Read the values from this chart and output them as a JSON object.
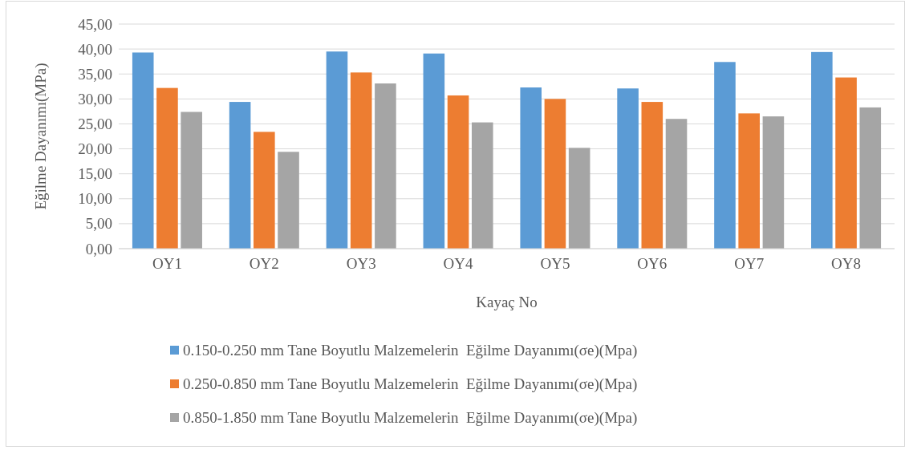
{
  "chart_data": {
    "type": "bar",
    "xlabel": "Kayaç No",
    "ylabel": "Eğilme Dayanımı(MPa)",
    "categories": [
      "OY1",
      "OY2",
      "OY3",
      "OY4",
      "OY5",
      "OY6",
      "OY7",
      "OY8"
    ],
    "series": [
      {
        "name": "0.150-0.250 mm Tane Boyutlu Malzemelerin  Eğilme Dayanımı(σe)(Mpa)",
        "color": "#5b9bd5",
        "values": [
          39.3,
          29.4,
          39.5,
          39.1,
          32.3,
          32.1,
          37.4,
          39.4
        ]
      },
      {
        "name": "0.250-0.850 mm Tane Boyutlu Malzemelerin  Eğilme Dayanımı(σe)(Mpa)",
        "color": "#ed7d31",
        "values": [
          32.2,
          23.4,
          35.3,
          30.7,
          30.0,
          29.4,
          27.1,
          34.3
        ]
      },
      {
        "name": "0.850-1.850 mm Tane Boyutlu Malzemelerin  Eğilme Dayanımı(σe)(Mpa)",
        "color": "#a5a5a5",
        "values": [
          27.4,
          19.4,
          33.1,
          25.3,
          20.2,
          26.0,
          26.5,
          28.3
        ]
      }
    ],
    "ylim": [
      0,
      45
    ],
    "yticks": [
      {
        "value": 0,
        "label": "0,00"
      },
      {
        "value": 5,
        "label": "5,00"
      },
      {
        "value": 10,
        "label": "10,00"
      },
      {
        "value": 15,
        "label": "15,00"
      },
      {
        "value": 20,
        "label": "20,00"
      },
      {
        "value": 25,
        "label": "25,00"
      },
      {
        "value": 30,
        "label": "30,00"
      },
      {
        "value": 35,
        "label": "35,00"
      },
      {
        "value": 40,
        "label": "40,00"
      },
      {
        "value": 45,
        "label": "45,00"
      }
    ],
    "grid": "y",
    "legend": "bottom"
  }
}
